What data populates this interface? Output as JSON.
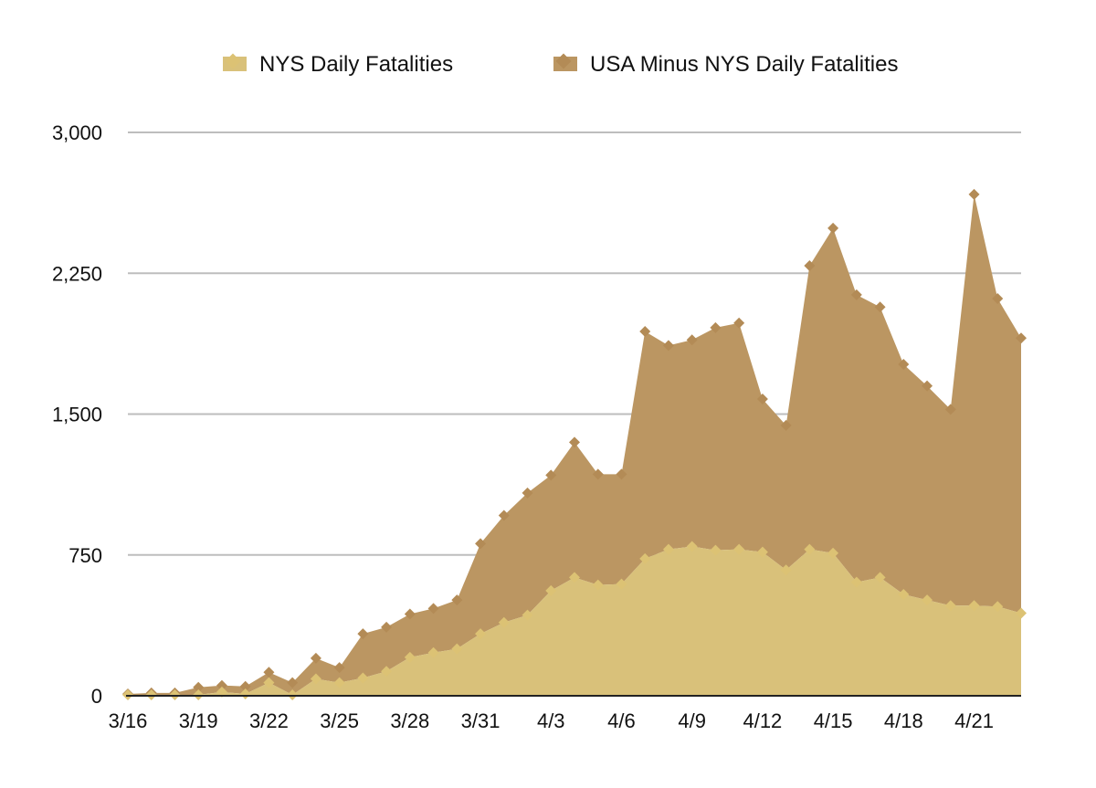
{
  "chart_data": {
    "type": "area",
    "stacked": true,
    "title": "",
    "xlabel": "",
    "ylabel": "",
    "ylim": [
      0,
      3000
    ],
    "yticks": [
      0,
      750,
      1500,
      2250,
      3000
    ],
    "ytick_labels": [
      "0",
      "750",
      "1,500",
      "2,250",
      "3,000"
    ],
    "grid": true,
    "legend_position": "top",
    "categories": [
      "3/16",
      "3/17",
      "3/18",
      "3/19",
      "3/20",
      "3/21",
      "3/22",
      "3/23",
      "3/24",
      "3/25",
      "3/26",
      "3/27",
      "3/28",
      "3/29",
      "3/30",
      "3/31",
      "4/1",
      "4/2",
      "4/3",
      "4/4",
      "4/5",
      "4/6",
      "4/7",
      "4/8",
      "4/9",
      "4/10",
      "4/11",
      "4/12",
      "4/13",
      "4/14",
      "4/15",
      "4/16",
      "4/17",
      "4/18",
      "4/19",
      "4/20",
      "4/21",
      "4/22",
      "4/23"
    ],
    "xtick_labels": [
      {
        "index": 0,
        "label": "3/16"
      },
      {
        "index": 3,
        "label": "3/19"
      },
      {
        "index": 6,
        "label": "3/22"
      },
      {
        "index": 9,
        "label": "3/25"
      },
      {
        "index": 12,
        "label": "3/28"
      },
      {
        "index": 15,
        "label": "3/31"
      },
      {
        "index": 18,
        "label": "4/3"
      },
      {
        "index": 21,
        "label": "4/6"
      },
      {
        "index": 24,
        "label": "4/9"
      },
      {
        "index": 27,
        "label": "4/12"
      },
      {
        "index": 30,
        "label": "4/15"
      },
      {
        "index": 33,
        "label": "4/18"
      },
      {
        "index": 36,
        "label": "4/21"
      }
    ],
    "series": [
      {
        "name": "NYS Daily Fatalities",
        "color": "#d9c17a",
        "marker_color": "#dcc274",
        "values": [
          5,
          5,
          5,
          5,
          20,
          10,
          70,
          5,
          90,
          70,
          95,
          130,
          205,
          230,
          250,
          330,
          390,
          430,
          560,
          630,
          590,
          595,
          730,
          780,
          795,
          775,
          780,
          765,
          670,
          780,
          760,
          605,
          630,
          540,
          510,
          480,
          480,
          475,
          440
        ]
      },
      {
        "name": "USA Minus NYS Daily Fatalities",
        "color": "#bb9662",
        "marker_color": "#b38b56",
        "values": [
          5,
          10,
          10,
          40,
          35,
          40,
          55,
          65,
          110,
          80,
          235,
          235,
          230,
          235,
          260,
          480,
          570,
          650,
          615,
          720,
          590,
          585,
          1210,
          1085,
          1100,
          1185,
          1205,
          815,
          770,
          1510,
          1730,
          1530,
          1440,
          1225,
          1140,
          1045,
          2190,
          1640,
          1465
        ]
      }
    ],
    "stacked_totals": [
      10,
      15,
      15,
      45,
      55,
      50,
      125,
      70,
      200,
      150,
      330,
      365,
      435,
      465,
      510,
      810,
      960,
      1080,
      1175,
      1350,
      1180,
      1180,
      1940,
      1865,
      1895,
      1960,
      1985,
      1580,
      1440,
      2290,
      2490,
      2135,
      2070,
      1765,
      1650,
      1525,
      2670,
      2115,
      1905
    ]
  }
}
